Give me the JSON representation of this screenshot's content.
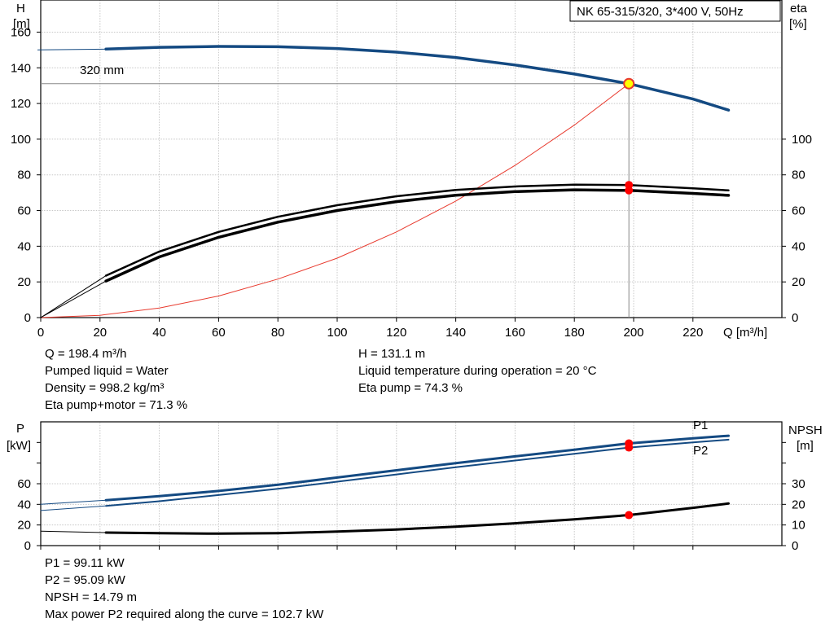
{
  "chart_data": [
    {
      "type": "line",
      "title": "NK 65-315/320, 3*400 V, 50Hz",
      "xlabel": "Q [m³/h]",
      "ylabel_left": [
        "H",
        "[m]"
      ],
      "ylabel_right": [
        "eta",
        "[%]"
      ],
      "xlim": [
        0,
        250
      ],
      "ylim_left": [
        0,
        178
      ],
      "ylim_right": [
        0,
        178
      ],
      "x_ticks": [
        "0",
        "20",
        "40",
        "60",
        "80",
        "100",
        "120",
        "140",
        "160",
        "180",
        "200",
        "220"
      ],
      "x_tick_values": [
        0,
        20,
        40,
        60,
        80,
        100,
        120,
        140,
        160,
        180,
        200,
        220
      ],
      "y_ticks_left": [
        "0",
        "20",
        "40",
        "60",
        "80",
        "100",
        "120",
        "140",
        "160"
      ],
      "y_tick_values_left": [
        0,
        20,
        40,
        60,
        80,
        100,
        120,
        140,
        160
      ],
      "y_ticks_right": [
        "0",
        "20",
        "40",
        "60",
        "80",
        "100"
      ],
      "y_tick_values_right": [
        0,
        20,
        40,
        60,
        80,
        100
      ],
      "grid": true,
      "series": [
        {
          "name": "320 mm",
          "color": "#144a82",
          "x": [
            -1,
            22,
            40,
            60,
            80,
            100,
            120,
            140,
            160,
            180,
            198.4,
            220,
            232
          ],
          "y": [
            150,
            150.5,
            151.5,
            152,
            151.8,
            150.8,
            148.8,
            145.8,
            141.6,
            136.5,
            131.1,
            122.5,
            116.3
          ],
          "thin_segment_until_x": 22
        },
        {
          "color": "#000000",
          "x": [
            0,
            22,
            40,
            60,
            80,
            100,
            120,
            140,
            160,
            180,
            198.4,
            220,
            232
          ],
          "y": [
            0,
            23.5,
            37,
            48,
            56.5,
            63,
            68,
            71.5,
            73.5,
            74.5,
            74.3,
            72.5,
            71.3
          ],
          "thin_segment_until_x": 22
        },
        {
          "color": "#000000",
          "x": [
            0,
            22,
            40,
            60,
            80,
            100,
            120,
            140,
            160,
            180,
            198.4,
            220,
            232
          ],
          "y": [
            0,
            20.5,
            34,
            45,
            53.5,
            60,
            65,
            68.6,
            70.6,
            71.6,
            71.3,
            69.6,
            68.5
          ],
          "thin_segment_until_x": 22
        },
        {
          "color": "#e83a2e",
          "x": [
            0,
            20,
            40,
            60,
            80,
            100,
            120,
            140,
            160,
            180,
            198.4
          ],
          "y": [
            0,
            1.3,
            5.4,
            12.1,
            21.6,
            33.3,
            48,
            65.3,
            85.3,
            107.9,
            131.1
          ]
        }
      ],
      "operating_point": {
        "x": 198.4,
        "y": 131.1,
        "eta_pump": 74.3,
        "eta_pump_motor": 71.3
      }
    },
    {
      "type": "line",
      "ylabel_left": [
        "P",
        "[kW]"
      ],
      "ylabel_right": [
        "NPSH",
        "[m]"
      ],
      "xlim": [
        0,
        250
      ],
      "ylim_left": [
        0,
        120
      ],
      "ylim_right": [
        0,
        60
      ],
      "x_tick_values": [
        0,
        20,
        40,
        60,
        80,
        100,
        120,
        140,
        160,
        180,
        200,
        220
      ],
      "y_ticks_left": [
        "0",
        "20",
        "40",
        "60"
      ],
      "y_tick_values_left": [
        0,
        20,
        40,
        60
      ],
      "y_ticks_right": [
        "0",
        "10",
        "20",
        "30"
      ],
      "y_tick_values_right": [
        0,
        10,
        20,
        30
      ],
      "grid": true,
      "series": [
        {
          "name": "P1",
          "color": "#144a82",
          "axis": "left",
          "x": [
            0,
            22,
            40,
            60,
            80,
            100,
            120,
            140,
            160,
            180,
            198.4,
            220,
            232
          ],
          "y": [
            40,
            44,
            48,
            53,
            59,
            66,
            73,
            80,
            86.5,
            93,
            99.11,
            104,
            106.5
          ],
          "thin_segment_until_x": 22
        },
        {
          "name": "P2",
          "color": "#144a82",
          "axis": "left",
          "x": [
            0,
            22,
            40,
            60,
            80,
            100,
            120,
            140,
            160,
            180,
            198.4,
            220,
            232
          ],
          "y": [
            34,
            38.5,
            43,
            49,
            55,
            62,
            69,
            76,
            82.5,
            89,
            95.09,
            100,
            102.7
          ],
          "thin_segment_until_x": 22
        },
        {
          "color": "#000000",
          "axis": "right",
          "x": [
            0,
            22,
            40,
            60,
            80,
            100,
            120,
            140,
            160,
            180,
            198.4,
            220,
            232
          ],
          "y": [
            7,
            6.3,
            6,
            5.8,
            6,
            6.8,
            7.8,
            9.2,
            10.8,
            12.7,
            14.79,
            18.3,
            20.4
          ],
          "thin_segment_until_x": 22
        }
      ]
    }
  ],
  "info_top_left": [
    "Q = 198.4 m³/h",
    "Pumped liquid = Water",
    "Density = 998.2 kg/m³",
    "Eta pump+motor = 71.3 %"
  ],
  "info_top_right": [
    "H = 131.1 m",
    "Liquid temperature during operation = 20 °C",
    "Eta pump = 74.3 %"
  ],
  "info_bottom": [
    "P1 = 99.11 kW",
    "P2 = 95.09 kW",
    "NPSH = 14.79 m",
    "Max power P2 required along the curve = 102.7 kW"
  ]
}
